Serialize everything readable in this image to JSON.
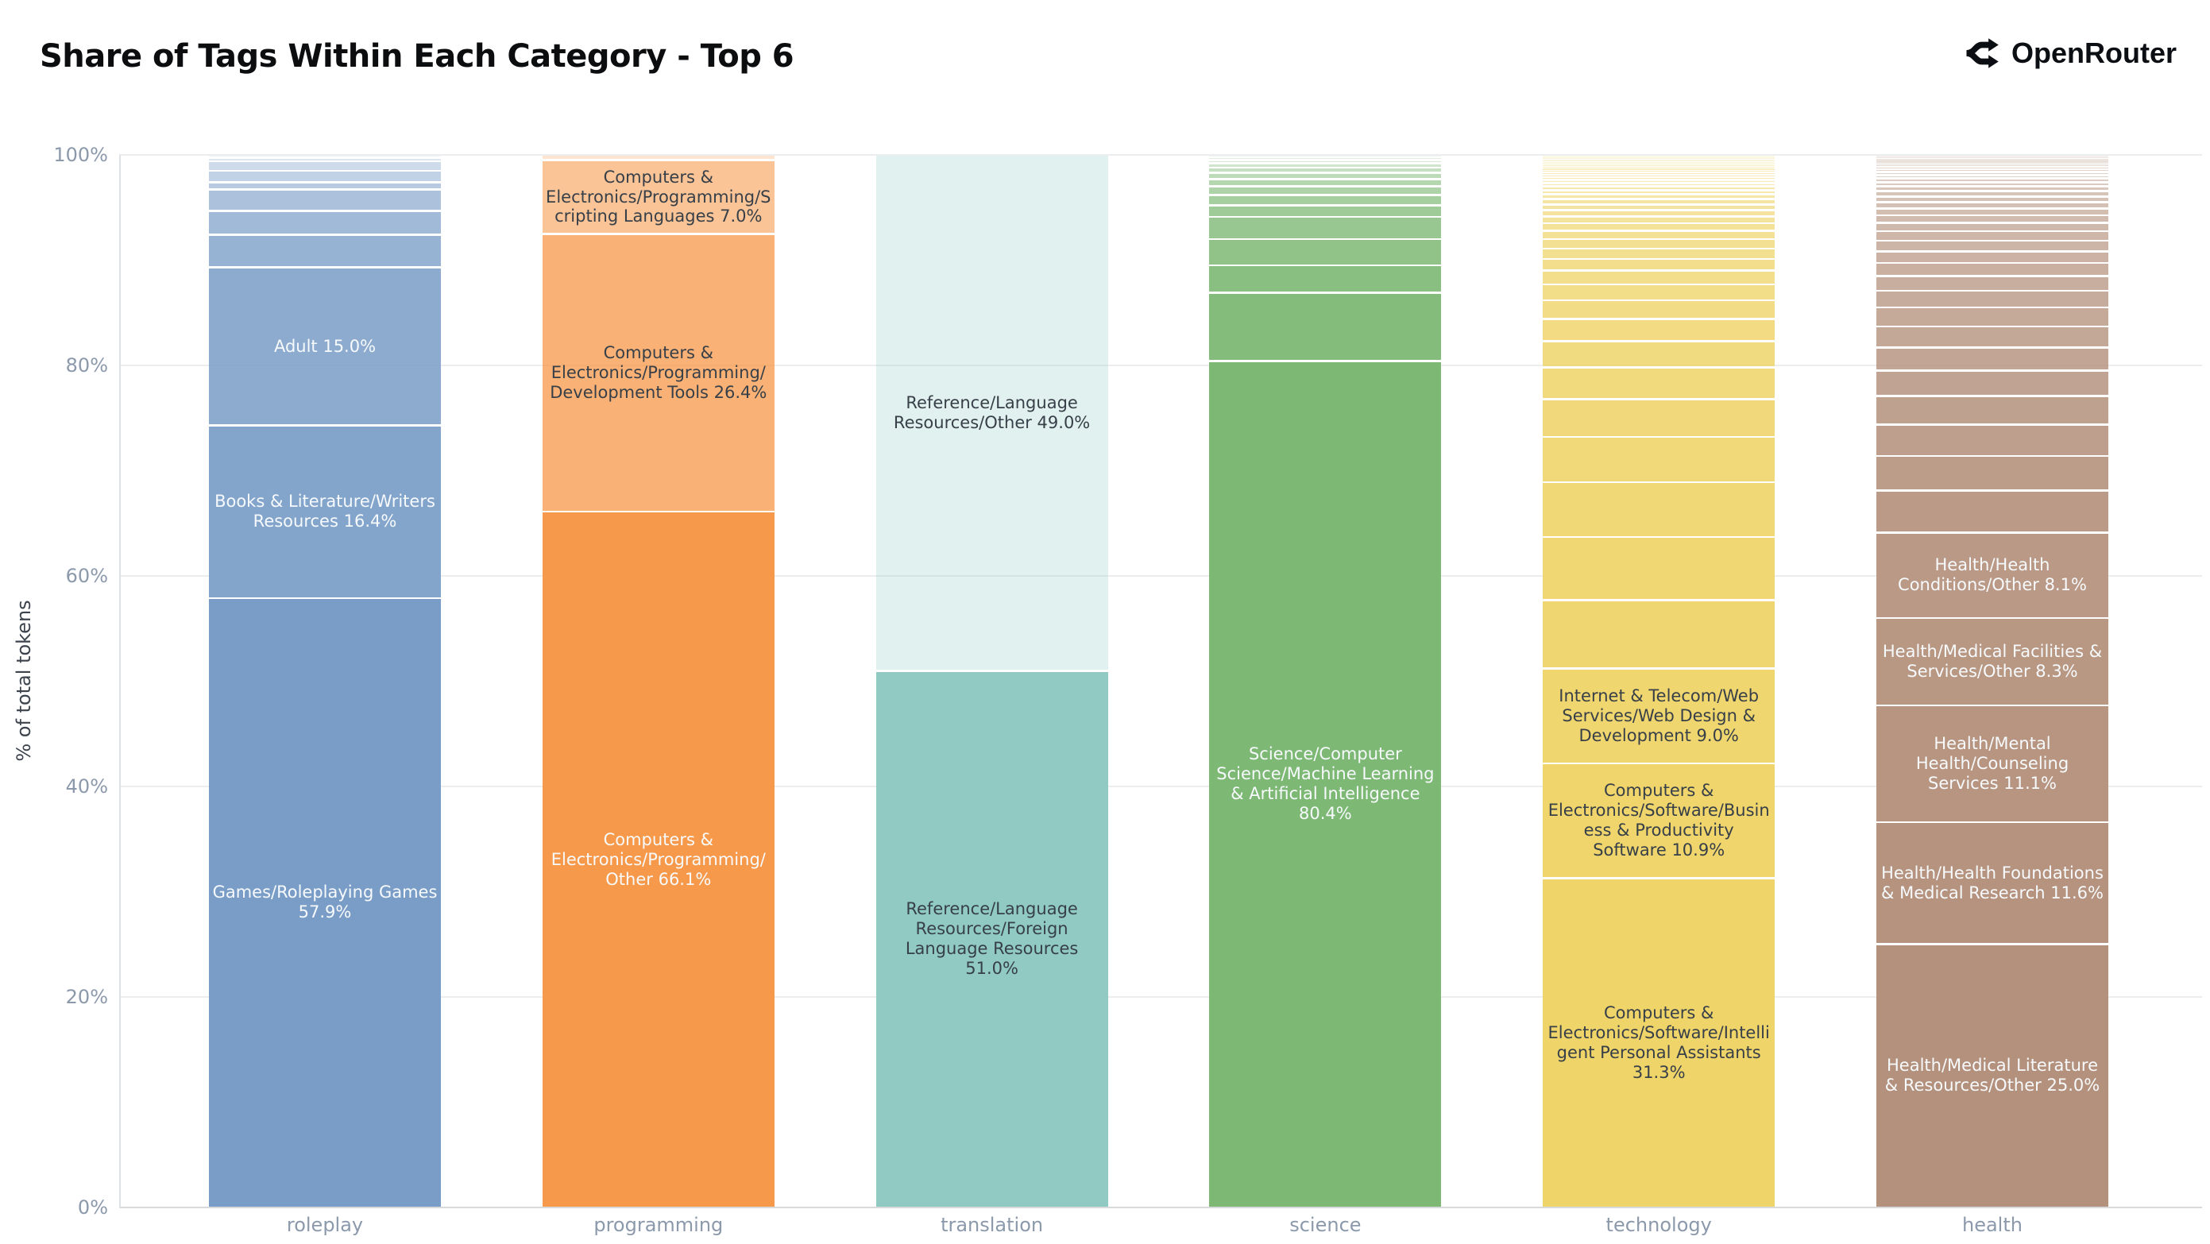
{
  "header": {
    "title": "Share of Tags Within Each Category - Top 6",
    "brand": {
      "name": "OpenRouter",
      "icon": "openrouter-fork-arrows-icon"
    }
  },
  "colors": {
    "background": "#ffffff",
    "title_text": "#0c0d0e",
    "axis_text": "#8b99ab",
    "ylabel_text": "#3c434d",
    "gridline": "#ebedef",
    "zero_line": "#d7dadd",
    "axis_line": "#dfe2e5",
    "label_light": "#f7fafc",
    "label_dark": "#373f48"
  },
  "chart_data": {
    "type": "bar",
    "stacked": true,
    "normalized_percent": true,
    "title": "Share of Tags Within Each Category - Top 6",
    "xlabel": "",
    "ylabel": "% of total tokens",
    "ylim": [
      0,
      100
    ],
    "yticks": [
      "0%",
      "20%",
      "40%",
      "60%",
      "80%",
      "100%"
    ],
    "grid": true,
    "legend": "none",
    "categories": [
      "roleplay",
      "programming",
      "translation",
      "science",
      "technology",
      "health"
    ],
    "bars": [
      {
        "category": "roleplay",
        "base_color": "#7A9DC7",
        "segments": [
          {
            "tag": "Games/Roleplaying Games",
            "pct": 57.9,
            "text": "light"
          },
          {
            "tag": "Books & Literature/Writers Resources",
            "pct": 16.4,
            "text": "light"
          },
          {
            "tag": "Adult",
            "pct": 15.0,
            "text": "light"
          },
          {
            "pct": 3.1
          },
          {
            "pct": 2.3
          },
          {
            "pct": 2.0
          },
          {
            "pct": 0.7
          },
          {
            "pct": 1.1
          },
          {
            "pct": 0.9
          },
          {
            "pct": 0.35
          },
          {
            "pct": 0.25
          }
        ]
      },
      {
        "category": "programming",
        "base_color": "#F7994A",
        "segments": [
          {
            "tag": "Computers & Electronics/Programming/Other",
            "pct": 66.1,
            "text": "light"
          },
          {
            "tag": "Computers & Electronics/Programming/Development Tools",
            "pct": 26.4,
            "text": "dark",
            "a": 0.76
          },
          {
            "tag": "Computers & Electronics/Programming/Scripting Languages",
            "pct": 7.0,
            "text": "dark",
            "a": 0.58
          },
          {
            "pct": 0.5,
            "a": 0.25
          }
        ]
      },
      {
        "category": "translation",
        "base_color": "#90CAC3",
        "segments": [
          {
            "tag": "Reference/Language Resources/Foreign Language Resources",
            "pct": 51.0,
            "text": "dark"
          },
          {
            "tag": "Reference/Language Resources/Other",
            "pct": 49.0,
            "text": "dark",
            "a": 0.27
          }
        ]
      },
      {
        "category": "science",
        "base_color": "#7DB874",
        "segments": [
          {
            "tag": "Science/Computer Science/Machine Learning & Artificial Intelligence",
            "pct": 80.4,
            "text": "light"
          },
          {
            "pct": 6.5
          },
          {
            "pct": 2.6
          },
          {
            "pct": 2.5
          },
          {
            "pct": 2.1
          },
          {
            "pct": 1.1
          },
          {
            "pct": 1.0
          },
          {
            "pct": 0.8
          },
          {
            "pct": 0.7
          },
          {
            "pct": 0.6
          },
          {
            "pct": 0.5
          },
          {
            "pct": 0.4
          },
          {
            "pct": 0.3
          },
          {
            "pct": 0.3
          },
          {
            "pct": 0.2
          }
        ]
      },
      {
        "category": "technology",
        "base_color": "#EFD469",
        "segments": [
          {
            "tag": "Computers & Electronics/Software/Intelligent Personal Assistants",
            "pct": 31.3,
            "text": "dark"
          },
          {
            "tag": "Computers & Electronics/Software/Business & Productivity Software",
            "pct": 10.9,
            "text": "dark"
          },
          {
            "tag": "Internet & Telecom/Web Services/Web Design & Development",
            "pct": 9.0,
            "text": "dark"
          },
          {
            "pct": 6.5
          },
          {
            "pct": 6.0
          },
          {
            "pct": 5.2
          },
          {
            "pct": 4.3
          },
          {
            "pct": 3.6
          },
          {
            "pct": 3.0
          },
          {
            "pct": 2.5
          },
          {
            "pct": 2.1
          },
          {
            "pct": 1.8
          },
          {
            "pct": 1.5
          },
          {
            "pct": 1.3
          },
          {
            "pct": 1.1
          },
          {
            "pct": 1.0
          },
          {
            "pct": 0.9
          },
          {
            "pct": 0.8
          },
          {
            "pct": 0.7
          },
          {
            "pct": 0.65
          },
          {
            "pct": 0.6
          },
          {
            "pct": 0.55
          },
          {
            "pct": 0.5
          },
          {
            "pct": 0.45
          },
          {
            "pct": 0.4
          },
          {
            "pct": 0.36
          },
          {
            "pct": 0.33
          },
          {
            "pct": 0.3
          },
          {
            "pct": 0.27
          },
          {
            "pct": 0.25
          },
          {
            "pct": 0.23
          },
          {
            "pct": 0.21
          },
          {
            "pct": 0.19
          },
          {
            "pct": 0.18
          },
          {
            "pct": 0.16
          },
          {
            "pct": 0.15
          },
          {
            "pct": 0.14
          },
          {
            "pct": 0.13
          },
          {
            "pct": 0.12
          },
          {
            "pct": 0.11
          },
          {
            "pct": 0.1
          },
          {
            "pct": 0.09
          },
          {
            "pct": 0.03
          }
        ]
      },
      {
        "category": "health",
        "base_color": "#B4917C",
        "segments": [
          {
            "tag": "Health/Medical Literature & Resources/Other",
            "pct": 25.0,
            "text": "light"
          },
          {
            "tag": "Health/Health Foundations & Medical Research",
            "pct": 11.6,
            "text": "light"
          },
          {
            "tag": "Health/Mental Health/Counseling Services",
            "pct": 11.1,
            "text": "light"
          },
          {
            "tag": "Health/Medical Facilities & Services/Other",
            "pct": 8.3,
            "text": "light"
          },
          {
            "tag": "Health/Health Conditions/Other",
            "pct": 8.1,
            "text": "light"
          },
          {
            "pct": 4.0
          },
          {
            "pct": 3.3
          },
          {
            "pct": 3.0
          },
          {
            "pct": 2.7
          },
          {
            "pct": 2.4
          },
          {
            "pct": 2.2
          },
          {
            "pct": 2.0
          },
          {
            "pct": 1.8
          },
          {
            "pct": 1.6
          },
          {
            "pct": 1.4
          },
          {
            "pct": 1.25
          },
          {
            "pct": 1.1
          },
          {
            "pct": 1.0
          },
          {
            "pct": 0.9
          },
          {
            "pct": 0.8
          },
          {
            "pct": 0.7
          },
          {
            "pct": 0.65
          },
          {
            "pct": 0.6
          },
          {
            "pct": 0.55
          },
          {
            "pct": 0.5
          },
          {
            "pct": 0.45
          },
          {
            "pct": 0.4
          },
          {
            "pct": 0.36
          },
          {
            "pct": 0.33
          },
          {
            "pct": 0.3
          },
          {
            "pct": 0.27
          },
          {
            "pct": 0.24
          },
          {
            "pct": 0.21
          },
          {
            "pct": 0.19
          },
          {
            "pct": 0.17
          },
          {
            "pct": 0.15
          },
          {
            "pct": 0.13
          },
          {
            "pct": 0.11
          },
          {
            "pct": 0.09
          },
          {
            "pct": 0.05
          }
        ]
      }
    ]
  }
}
